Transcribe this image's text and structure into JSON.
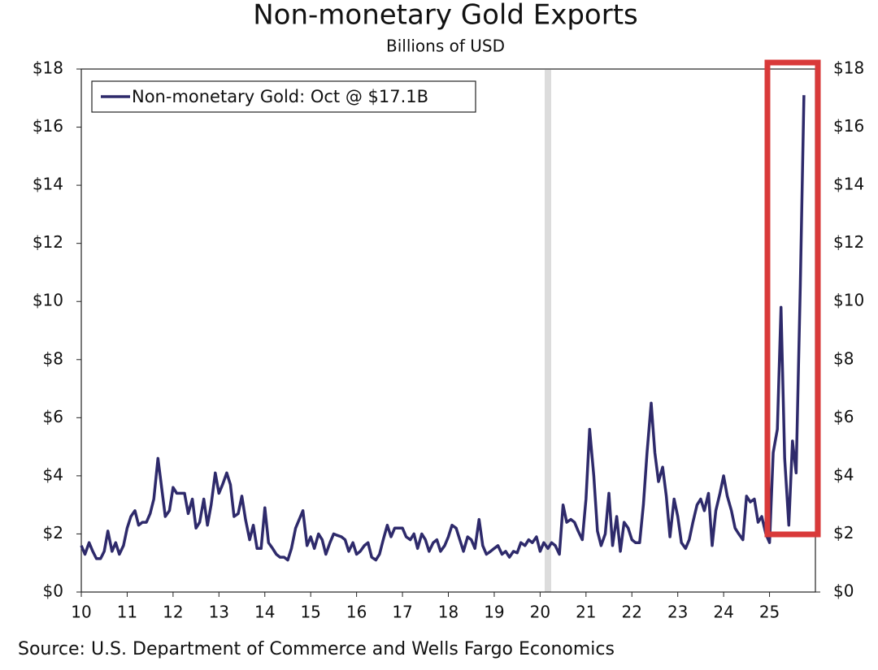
{
  "chart_data": {
    "type": "line",
    "title": "Non-monetary Gold Exports",
    "subtitle": "Billions of USD",
    "source": "Source: U.S. Department of Commerce and Wells Fargo Economics",
    "x": [
      10,
      10.08,
      10.17,
      10.25,
      10.33,
      10.42,
      10.5,
      10.58,
      10.67,
      10.75,
      10.83,
      10.92,
      11,
      11.08,
      11.17,
      11.25,
      11.33,
      11.42,
      11.5,
      11.58,
      11.67,
      11.75,
      11.83,
      11.92,
      12,
      12.08,
      12.17,
      12.25,
      12.33,
      12.42,
      12.5,
      12.58,
      12.67,
      12.75,
      12.83,
      12.92,
      13,
      13.08,
      13.17,
      13.25,
      13.33,
      13.42,
      13.5,
      13.58,
      13.67,
      13.75,
      13.83,
      13.92,
      14,
      14.08,
      14.17,
      14.25,
      14.33,
      14.42,
      14.5,
      14.58,
      14.67,
      14.75,
      14.83,
      14.92,
      15,
      15.08,
      15.17,
      15.25,
      15.33,
      15.42,
      15.5,
      15.58,
      15.67,
      15.75,
      15.83,
      15.92,
      16,
      16.08,
      16.17,
      16.25,
      16.33,
      16.42,
      16.5,
      16.58,
      16.67,
      16.75,
      16.83,
      16.92,
      17,
      17.08,
      17.17,
      17.25,
      17.33,
      17.42,
      17.5,
      17.58,
      17.67,
      17.75,
      17.83,
      17.92,
      18,
      18.08,
      18.17,
      18.25,
      18.33,
      18.42,
      18.5,
      18.58,
      18.67,
      18.75,
      18.83,
      18.92,
      19,
      19.08,
      19.17,
      19.25,
      19.33,
      19.42,
      19.5,
      19.58,
      19.67,
      19.75,
      19.83,
      19.92,
      20,
      20.08,
      20.17,
      20.25,
      20.33,
      20.42,
      20.5,
      20.58,
      20.67,
      20.75,
      20.83,
      20.92,
      21,
      21.08,
      21.17,
      21.25,
      21.33,
      21.42,
      21.5,
      21.58,
      21.67,
      21.75,
      21.83,
      21.92,
      22,
      22.08,
      22.17,
      22.25,
      22.33,
      22.42,
      22.5,
      22.58,
      22.67,
      22.75,
      22.83,
      22.92,
      23,
      23.08,
      23.17,
      23.25,
      23.33,
      23.42,
      23.5,
      23.58,
      23.67,
      23.75,
      23.83,
      23.92,
      24,
      24.08,
      24.17,
      24.25,
      24.33,
      24.42,
      24.5,
      24.58,
      24.67,
      24.75,
      24.83,
      24.92,
      25,
      25.08,
      25.17,
      25.25,
      25.33,
      25.42,
      25.5,
      25.58,
      25.67,
      25.75
    ],
    "series": [
      {
        "name": "Non-monetary Gold: Oct @ $17.1B",
        "color": "#2e2a6b",
        "values": [
          1.6,
          1.3,
          1.7,
          1.4,
          1.15,
          1.15,
          1.4,
          2.1,
          1.4,
          1.7,
          1.3,
          1.6,
          2.2,
          2.6,
          2.8,
          2.3,
          2.4,
          2.4,
          2.7,
          3.2,
          4.6,
          3.6,
          2.6,
          2.8,
          3.6,
          3.4,
          3.4,
          3.4,
          2.7,
          3.2,
          2.2,
          2.4,
          3.2,
          2.3,
          3.0,
          4.1,
          3.4,
          3.7,
          4.1,
          3.7,
          2.6,
          2.7,
          3.3,
          2.5,
          1.8,
          2.3,
          1.5,
          1.5,
          2.9,
          1.7,
          1.5,
          1.3,
          1.2,
          1.2,
          1.1,
          1.5,
          2.2,
          2.5,
          2.8,
          1.6,
          1.9,
          1.5,
          2.0,
          1.8,
          1.3,
          1.7,
          2.0,
          1.95,
          1.9,
          1.8,
          1.4,
          1.7,
          1.3,
          1.4,
          1.6,
          1.7,
          1.2,
          1.1,
          1.3,
          1.8,
          2.3,
          1.9,
          2.2,
          2.2,
          2.2,
          1.9,
          1.8,
          2.0,
          1.5,
          2.0,
          1.8,
          1.4,
          1.7,
          1.8,
          1.4,
          1.6,
          1.9,
          2.3,
          2.2,
          1.8,
          1.4,
          1.9,
          1.8,
          1.5,
          2.5,
          1.6,
          1.3,
          1.4,
          1.5,
          1.6,
          1.3,
          1.4,
          1.2,
          1.4,
          1.35,
          1.7,
          1.6,
          1.8,
          1.7,
          1.9,
          1.4,
          1.7,
          1.5,
          1.7,
          1.6,
          1.3,
          3.0,
          2.4,
          2.5,
          2.4,
          2.1,
          1.8,
          3.2,
          5.6,
          4.0,
          2.1,
          1.6,
          2.0,
          3.4,
          1.6,
          2.6,
          1.4,
          2.4,
          2.2,
          1.8,
          1.7,
          1.7,
          3.0,
          4.8,
          6.5,
          4.8,
          3.8,
          4.3,
          3.3,
          1.9,
          3.2,
          2.6,
          1.7,
          1.5,
          1.8,
          2.4,
          3.0,
          3.2,
          2.8,
          3.4,
          1.6,
          2.8,
          3.4,
          4.0,
          3.3,
          2.8,
          2.2,
          2.0,
          1.8,
          3.3,
          3.1,
          3.2,
          2.4,
          2.6,
          2.0,
          1.7,
          4.8,
          5.6,
          9.8,
          4.6,
          2.3,
          5.2,
          4.1,
          10.5,
          17.1
        ]
      }
    ],
    "xlim": [
      10,
      26
    ],
    "xticks": [
      10,
      11,
      12,
      13,
      14,
      15,
      16,
      17,
      18,
      19,
      20,
      21,
      22,
      23,
      24,
      25
    ],
    "ylim": [
      0,
      18
    ],
    "yticks": [
      {
        "value": 0,
        "label": "$0"
      },
      {
        "value": 2,
        "label": "$2"
      },
      {
        "value": 4,
        "label": "$4"
      },
      {
        "value": 6,
        "label": "$6"
      },
      {
        "value": 8,
        "label": "$8"
      },
      {
        "value": 10,
        "label": "$10"
      },
      {
        "value": 12,
        "label": "$12"
      },
      {
        "value": 14,
        "label": "$14"
      },
      {
        "value": 16,
        "label": "$16"
      },
      {
        "value": 18,
        "label": "$18"
      }
    ],
    "legend": "upper left"
  }
}
